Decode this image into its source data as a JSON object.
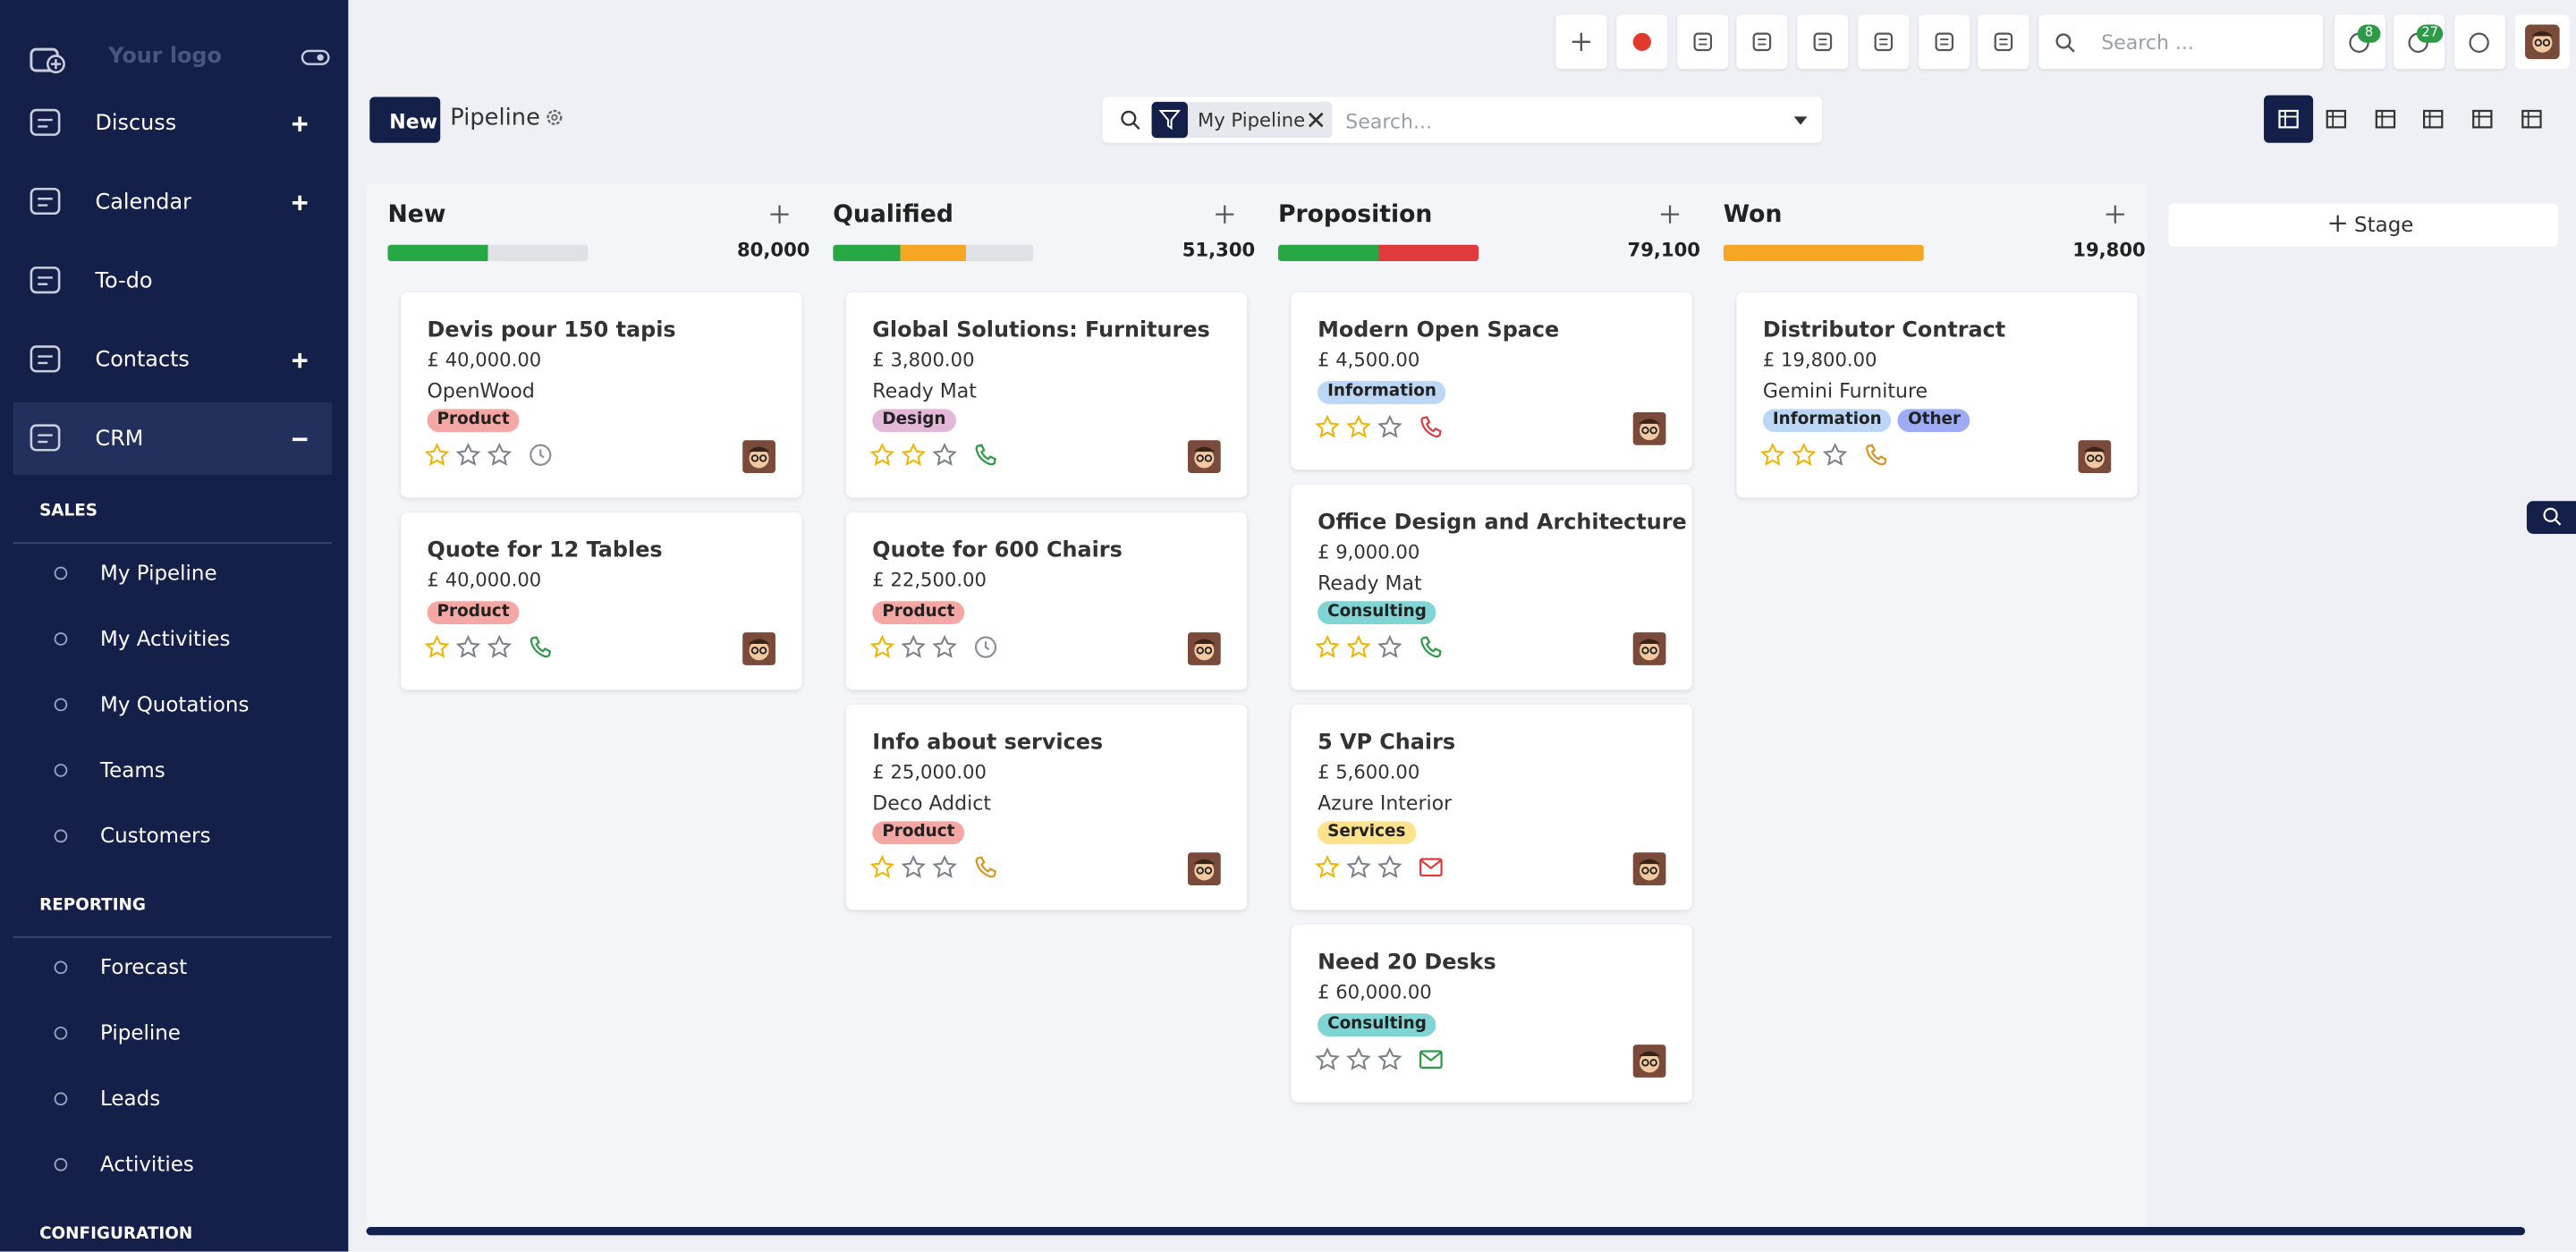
{
  "sidebar": {
    "logo": "Your logo",
    "menu": [
      {
        "label": "Discuss",
        "toggle": "plus"
      },
      {
        "label": "Calendar",
        "toggle": "plus"
      },
      {
        "label": "To-do"
      },
      {
        "label": "Contacts",
        "toggle": "plus"
      },
      {
        "label": "CRM",
        "toggle": "minus",
        "active": true
      }
    ],
    "sections": [
      {
        "title": "SALES",
        "items": [
          "My Pipeline",
          "My Activities",
          "My Quotations",
          "Teams",
          "Customers"
        ]
      },
      {
        "title": "REPORTING",
        "items": [
          "Forecast",
          "Pipeline",
          "Leads",
          "Activities"
        ]
      },
      {
        "title": "CONFIGURATION",
        "items": []
      }
    ]
  },
  "topbar": {
    "search_placeholder": "Search ...",
    "badges": [
      8,
      27
    ]
  },
  "control": {
    "new_button": "New",
    "title": "Pipeline",
    "facet": "My Pipeline",
    "search_placeholder": "Search..."
  },
  "kanban": {
    "add_stage": "Stage",
    "columns": [
      {
        "name": "New",
        "total": "80,000",
        "progress": [
          "#28a745",
          "#dfe1e6"
        ],
        "cards": [
          {
            "title": "Devis pour 150 tapis",
            "amount": "£ 40,000.00",
            "partner": "OpenWood",
            "tags": [
              {
                "label": "Product",
                "color": "#f5a8a3"
              }
            ],
            "stars": 1,
            "activity": "clock",
            "activity_color": "#8a8f99"
          },
          {
            "title": "Quote for 12 Tables",
            "amount": "£ 40,000.00",
            "tags": [
              {
                "label": "Product",
                "color": "#f5a8a3"
              }
            ],
            "stars": 1,
            "activity": "phone",
            "activity_color": "#2e9a48"
          }
        ]
      },
      {
        "name": "Qualified",
        "total": "51,300",
        "progress": [
          "#28a745",
          "#f5a623",
          "#dfe1e6"
        ],
        "cards": [
          {
            "title": "Global Solutions: Furnitures",
            "amount": "£ 3,800.00",
            "partner": "Ready Mat",
            "tags": [
              {
                "label": "Design",
                "color": "#e2b7d8"
              }
            ],
            "stars": 2,
            "activity": "phone",
            "activity_color": "#2e9a48"
          },
          {
            "title": "Quote for 600 Chairs",
            "amount": "£ 22,500.00",
            "tags": [
              {
                "label": "Product",
                "color": "#f5a8a3"
              }
            ],
            "stars": 1,
            "activity": "clock",
            "activity_color": "#8a8f99"
          },
          {
            "title": "Info about services",
            "amount": "£ 25,000.00",
            "partner": "Deco Addict",
            "tags": [
              {
                "label": "Product",
                "color": "#f5a8a3"
              }
            ],
            "stars": 1,
            "activity": "phone",
            "activity_color": "#d8951f"
          }
        ]
      },
      {
        "name": "Proposition",
        "total": "79,100",
        "progress": [
          "#28a745",
          "#e0393e"
        ],
        "cards": [
          {
            "title": "Modern Open Space",
            "amount": "£ 4,500.00",
            "tags": [
              {
                "label": "Information",
                "color": "#bcd6f5"
              }
            ],
            "stars": 2,
            "activity": "phone",
            "activity_color": "#e0393e"
          },
          {
            "title": "Office Design and Architecture",
            "amount": "£ 9,000.00",
            "partner": "Ready Mat",
            "tags": [
              {
                "label": "Consulting",
                "color": "#7fd4d4"
              }
            ],
            "stars": 2,
            "activity": "phone",
            "activity_color": "#2e9a48"
          },
          {
            "title": "5 VP Chairs",
            "amount": "£ 5,600.00",
            "partner": "Azure Interior",
            "tags": [
              {
                "label": "Services",
                "color": "#ffe28c"
              }
            ],
            "stars": 1,
            "activity": "email",
            "activity_color": "#e0393e"
          },
          {
            "title": "Need 20 Desks",
            "amount": "£ 60,000.00",
            "tags": [
              {
                "label": "Consulting",
                "color": "#7fd4d4"
              }
            ],
            "stars": 0,
            "activity": "email",
            "activity_color": "#2e9a48"
          }
        ]
      },
      {
        "name": "Won",
        "total": "19,800",
        "progress": [
          "#f5a623"
        ],
        "cards": [
          {
            "title": "Distributor Contract",
            "amount": "£ 19,800.00",
            "partner": "Gemini Furniture",
            "tags": [
              {
                "label": "Information",
                "color": "#bcd6f5"
              },
              {
                "label": "Other",
                "color": "#9eabf5"
              }
            ],
            "stars": 2,
            "activity": "phone",
            "activity_color": "#d8951f"
          }
        ]
      }
    ]
  }
}
